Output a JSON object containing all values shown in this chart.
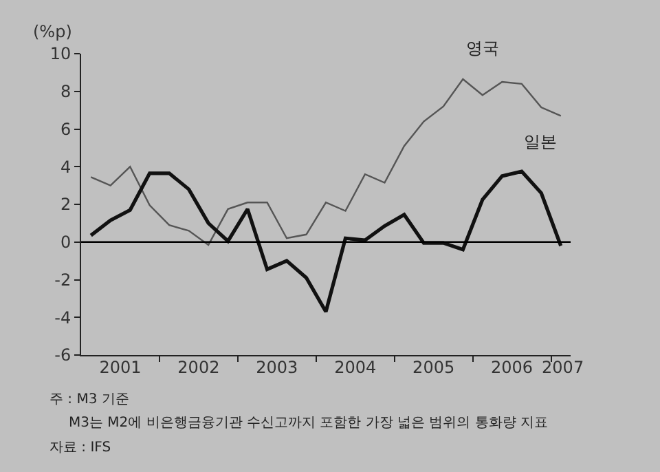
{
  "chart_data": {
    "type": "line",
    "ylabel": "(%p)",
    "x": [
      2001.125,
      2001.375,
      2001.625,
      2001.875,
      2002.125,
      2002.375,
      2002.625,
      2002.875,
      2003.125,
      2003.375,
      2003.625,
      2003.875,
      2004.125,
      2004.375,
      2004.625,
      2004.875,
      2005.125,
      2005.375,
      2005.625,
      2005.875,
      2006.125,
      2006.375,
      2006.625,
      2006.875,
      2007.125
    ],
    "series": [
      {
        "name": "영국",
        "color": "#555555",
        "values": [
          3.45,
          3.0,
          4.0,
          1.95,
          0.9,
          0.6,
          -0.15,
          1.75,
          2.1,
          2.1,
          0.2,
          0.4,
          2.1,
          1.65,
          3.6,
          3.15,
          5.1,
          6.4,
          7.2,
          8.65,
          7.8,
          8.5,
          8.4,
          7.15,
          6.7
        ]
      },
      {
        "name": "일본",
        "color": "#111111",
        "values": [
          0.35,
          1.15,
          1.7,
          3.65,
          3.65,
          2.8,
          1.0,
          0.05,
          1.75,
          -1.45,
          -1.0,
          -1.9,
          -3.7,
          0.2,
          0.1,
          0.85,
          1.45,
          -0.05,
          -0.05,
          -0.4,
          2.25,
          3.5,
          3.75,
          2.6,
          -0.2
        ]
      }
    ],
    "xlim": [
      2001,
      2007.25
    ],
    "xticks": [
      {
        "value": 2001.5,
        "label": "2001"
      },
      {
        "value": 2002,
        "label": null
      },
      {
        "value": 2002.5,
        "label": "2002"
      },
      {
        "value": 2003,
        "label": null
      },
      {
        "value": 2003.5,
        "label": "2003"
      },
      {
        "value": 2004,
        "label": null
      },
      {
        "value": 2004.5,
        "label": "2004"
      },
      {
        "value": 2005,
        "label": null
      },
      {
        "value": 2005.5,
        "label": "2005"
      },
      {
        "value": 2006,
        "label": null
      },
      {
        "value": 2006.5,
        "label": "2006"
      },
      {
        "value": 2007,
        "label": null
      },
      {
        "value": 2007.15,
        "label": "2007"
      }
    ],
    "ylim": [
      -6,
      10
    ],
    "yticks": [
      -6,
      -4,
      -2,
      0,
      2,
      4,
      6,
      8,
      10
    ],
    "ref_lines": [
      {
        "axis": "y",
        "value": 0,
        "color": "#000000"
      }
    ],
    "grid": false,
    "legend": false,
    "marker": "none",
    "line_style": "solid",
    "annotations": [
      "주 : M3 기준",
      "M3는 M2에 비은행금융기관 수신고까지 포함한 가장 넓은 범위의 통화량 지표",
      "자료 : IFS"
    ]
  }
}
